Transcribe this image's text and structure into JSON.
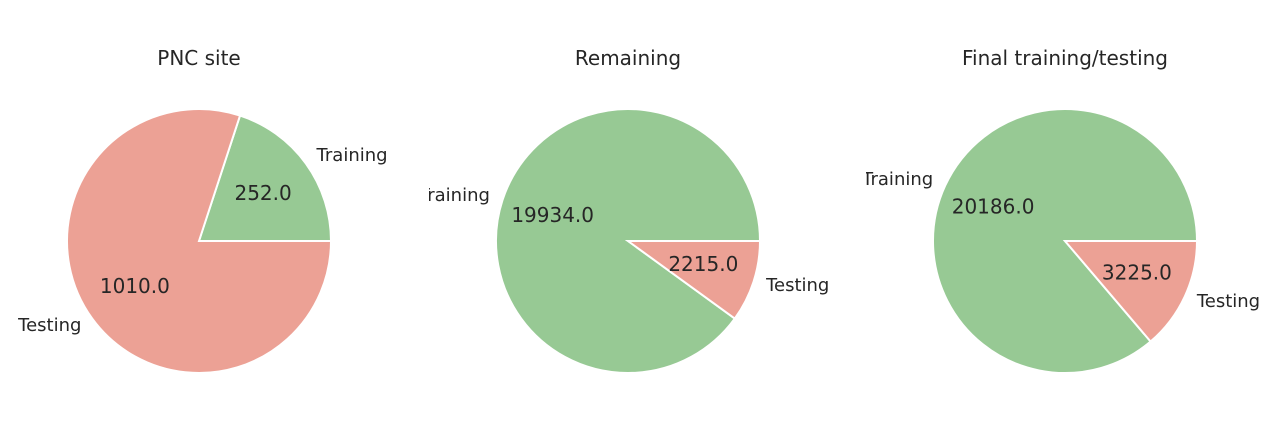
{
  "colors": {
    "training": "#97c994",
    "testing": "#eca195"
  },
  "chart_data": [
    {
      "type": "pie",
      "title": "PNC site",
      "labels": [
        "Training",
        "Testing"
      ],
      "values": [
        252.0,
        1010.0
      ],
      "value_labels": [
        "252.0",
        "1010.0"
      ],
      "colors": [
        "#97c994",
        "#eca195"
      ],
      "start_angle": 0
    },
    {
      "type": "pie",
      "title": "Remaining",
      "labels": [
        "Training",
        "Testing"
      ],
      "values": [
        19934.0,
        2215.0
      ],
      "value_labels": [
        "19934.0",
        "2215.0"
      ],
      "colors": [
        "#97c994",
        "#eca195"
      ],
      "start_angle": 0
    },
    {
      "type": "pie",
      "title": "Final training/testing",
      "labels": [
        "Training",
        "Testing"
      ],
      "values": [
        20186.0,
        3225.0
      ],
      "value_labels": [
        "20186.0",
        "3225.0"
      ],
      "colors": [
        "#97c994",
        "#eca195"
      ],
      "start_angle": 0
    }
  ]
}
